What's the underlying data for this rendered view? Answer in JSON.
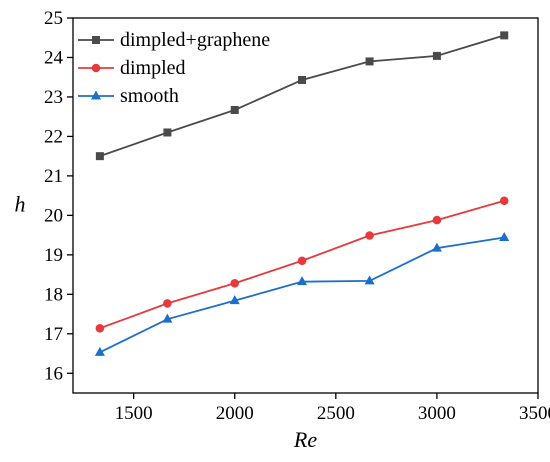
{
  "chart_data": {
    "type": "line",
    "xlabel": "Re",
    "ylabel": "h",
    "xlim": [
      1200,
      3500
    ],
    "ylim": [
      15.5,
      25
    ],
    "xticks": [
      1500,
      2000,
      2500,
      3000,
      3500
    ],
    "yticks": [
      16,
      17,
      18,
      19,
      20,
      21,
      22,
      23,
      24,
      25
    ],
    "x": [
      1333,
      1667,
      2000,
      2333,
      2667,
      3000,
      3333
    ],
    "legend_position": "top-left",
    "grid": false,
    "series": [
      {
        "name": "dimpled+graphene",
        "color": "#4a4a4a",
        "marker": "square",
        "values": [
          21.5,
          22.1,
          22.67,
          23.43,
          23.9,
          24.04,
          24.56
        ]
      },
      {
        "name": "dimpled",
        "color": "#e8393c",
        "marker": "circle",
        "values": [
          17.14,
          17.77,
          18.28,
          18.85,
          19.49,
          19.88,
          20.37
        ]
      },
      {
        "name": "smooth",
        "color": "#1c6fc9",
        "marker": "triangle",
        "values": [
          16.53,
          17.37,
          17.84,
          18.32,
          18.34,
          19.17,
          19.44
        ]
      }
    ]
  }
}
